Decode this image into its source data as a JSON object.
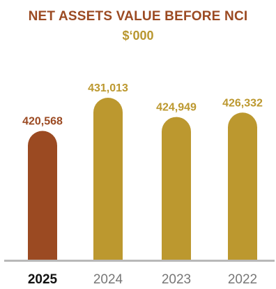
{
  "chart_data": {
    "type": "bar",
    "title": "NET ASSETS VALUE BEFORE NCI",
    "subtitle": "$‘000",
    "categories": [
      "2025",
      "2024",
      "2023",
      "2022"
    ],
    "values": [
      420568,
      431013,
      424949,
      426332
    ],
    "value_labels": [
      "420,568",
      "431,013",
      "424,949",
      "426,332"
    ],
    "highlight_category": "2025",
    "xlabel": "",
    "ylabel": "",
    "ylim": [
      380000,
      440000
    ],
    "grid": false,
    "legend": "none",
    "colors": {
      "highlight": "#9b4a22",
      "default": "#bc982f",
      "axis": "#b8b8b8",
      "label_highlight": "#111111",
      "label_default": "#777777",
      "title": "#9b4a22",
      "subtitle": "#b8962e"
    }
  }
}
